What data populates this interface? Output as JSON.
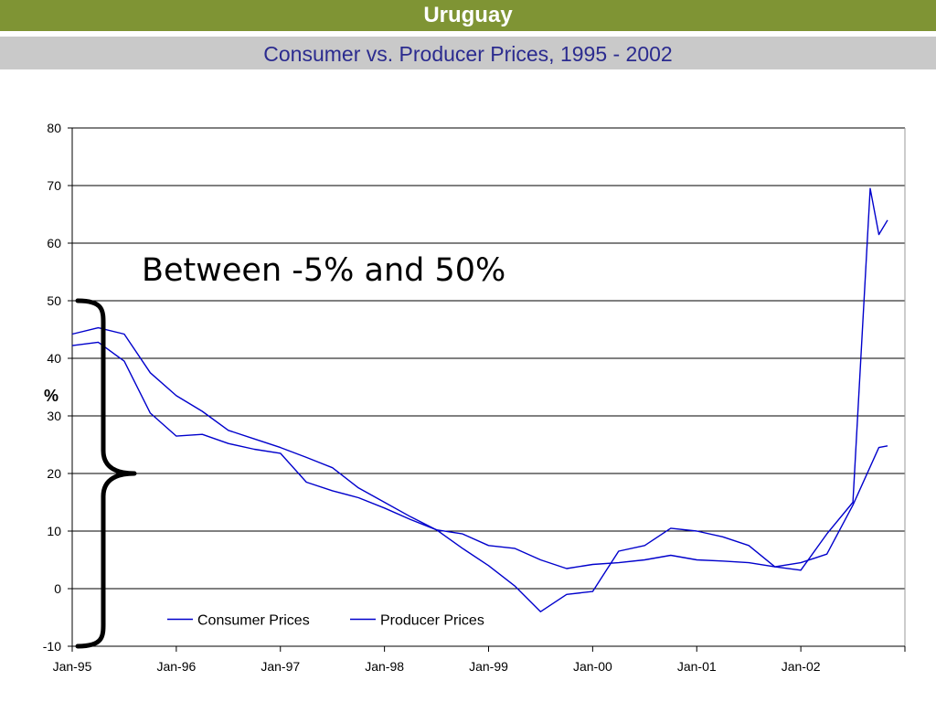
{
  "header": {
    "title": "Uruguay",
    "subtitle": "Consumer vs. Producer Prices, 1995 - 2002"
  },
  "colors": {
    "header_bg": "#7f9434",
    "subheader_bg": "#c9c9c9",
    "series": "#0000cc",
    "brace": "#000000"
  },
  "annotation": {
    "text": "Between -5% and 50%",
    "range": [
      -10,
      50
    ]
  },
  "chart_data": {
    "type": "line",
    "title": "Consumer vs. Producer Prices, 1995 - 2002",
    "xlabel": "",
    "ylabel": "%",
    "ylim": [
      -10,
      80
    ],
    "yticks": [
      -10,
      0,
      10,
      20,
      30,
      40,
      50,
      60,
      70,
      80
    ],
    "xlim": [
      "Jan-95",
      "Jan-03"
    ],
    "xticks": [
      "Jan-95",
      "Jan-96",
      "Jan-97",
      "Jan-98",
      "Jan-99",
      "Jan-00",
      "Jan-01",
      "Jan-02"
    ],
    "grid": "horizontal",
    "legend": "bottom",
    "series": [
      {
        "name": "Consumer Prices",
        "color": "#0000cc",
        "points": [
          [
            "Jan-95",
            42.2
          ],
          [
            "Apr-95",
            42.8
          ],
          [
            "Jul-95",
            39.5
          ],
          [
            "Oct-95",
            30.5
          ],
          [
            "Jan-96",
            26.5
          ],
          [
            "Apr-96",
            26.8
          ],
          [
            "Jul-96",
            25.2
          ],
          [
            "Oct-96",
            24.2
          ],
          [
            "Jan-97",
            23.5
          ],
          [
            "Apr-97",
            18.5
          ],
          [
            "Jul-97",
            17.0
          ],
          [
            "Oct-97",
            15.8
          ],
          [
            "Jan-98",
            14.0
          ],
          [
            "Apr-98",
            12.0
          ],
          [
            "Jul-98",
            10.2
          ],
          [
            "Oct-98",
            9.5
          ],
          [
            "Jan-99",
            7.5
          ],
          [
            "Apr-99",
            7.0
          ],
          [
            "Jul-99",
            5.0
          ],
          [
            "Oct-99",
            3.5
          ],
          [
            "Jan-00",
            4.2
          ],
          [
            "Apr-00",
            4.5
          ],
          [
            "Jul-00",
            5.0
          ],
          [
            "Oct-00",
            5.8
          ],
          [
            "Jan-01",
            5.0
          ],
          [
            "Apr-01",
            4.8
          ],
          [
            "Jul-01",
            4.5
          ],
          [
            "Oct-01",
            3.8
          ],
          [
            "Jan-02",
            4.5
          ],
          [
            "Apr-02",
            6.0
          ],
          [
            "Jul-02",
            14.5
          ],
          [
            "Oct-02",
            24.5
          ],
          [
            "Nov-02",
            24.8
          ]
        ]
      },
      {
        "name": "Producer Prices",
        "color": "#0000cc",
        "points": [
          [
            "Jan-95",
            44.2
          ],
          [
            "Apr-95",
            45.3
          ],
          [
            "Jul-95",
            44.2
          ],
          [
            "Oct-95",
            37.5
          ],
          [
            "Jan-96",
            33.5
          ],
          [
            "Apr-96",
            30.8
          ],
          [
            "Jul-96",
            27.5
          ],
          [
            "Oct-96",
            26.0
          ],
          [
            "Jan-97",
            24.5
          ],
          [
            "Apr-97",
            22.8
          ],
          [
            "Jul-97",
            21.0
          ],
          [
            "Oct-97",
            17.5
          ],
          [
            "Jan-98",
            15.0
          ],
          [
            "Apr-98",
            12.5
          ],
          [
            "Jul-98",
            10.2
          ],
          [
            "Oct-98",
            7.0
          ],
          [
            "Jan-99",
            4.0
          ],
          [
            "Apr-99",
            0.5
          ],
          [
            "Jul-99",
            -4.0
          ],
          [
            "Oct-99",
            -1.0
          ],
          [
            "Jan-00",
            -0.5
          ],
          [
            "Apr-00",
            6.5
          ],
          [
            "Jul-00",
            7.5
          ],
          [
            "Oct-00",
            10.5
          ],
          [
            "Jan-01",
            10.0
          ],
          [
            "Apr-01",
            9.0
          ],
          [
            "Jul-01",
            7.5
          ],
          [
            "Oct-01",
            3.8
          ],
          [
            "Jan-02",
            3.2
          ],
          [
            "Apr-02",
            9.5
          ],
          [
            "Jul-02",
            15.0
          ],
          [
            "Sep-02",
            69.5
          ],
          [
            "Oct-02",
            61.5
          ],
          [
            "Nov-02",
            64.0
          ]
        ]
      }
    ]
  }
}
